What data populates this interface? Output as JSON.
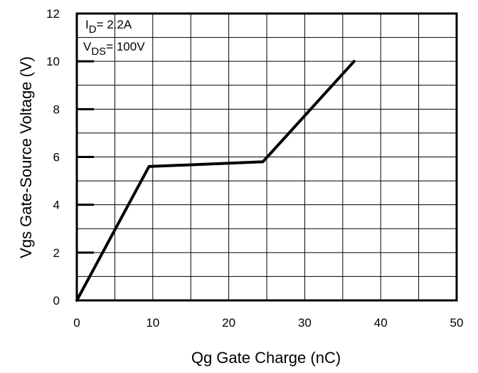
{
  "chart_data": {
    "type": "line",
    "title": "",
    "xlabel": "Qg Gate Charge (nC)",
    "ylabel": "Vgs Gate-Source Voltage (V)",
    "xlim": [
      0,
      50
    ],
    "ylim": [
      0,
      12
    ],
    "x_ticks": [
      "0",
      "10",
      "20",
      "30",
      "40",
      "50"
    ],
    "y_ticks": [
      "0",
      "2",
      "4",
      "6",
      "8",
      "10",
      "12"
    ],
    "grid": true,
    "series": [
      {
        "x": [
          0,
          9.5,
          24.5,
          36.5
        ],
        "y": [
          0,
          5.6,
          5.8,
          10
        ]
      }
    ],
    "annotations": {
      "id_label": {
        "main": "I",
        "sub": "D",
        "rest": "= 2.2A"
      },
      "vds_label": {
        "main": "V",
        "sub": "DS",
        "rest": "= 100V"
      }
    }
  }
}
